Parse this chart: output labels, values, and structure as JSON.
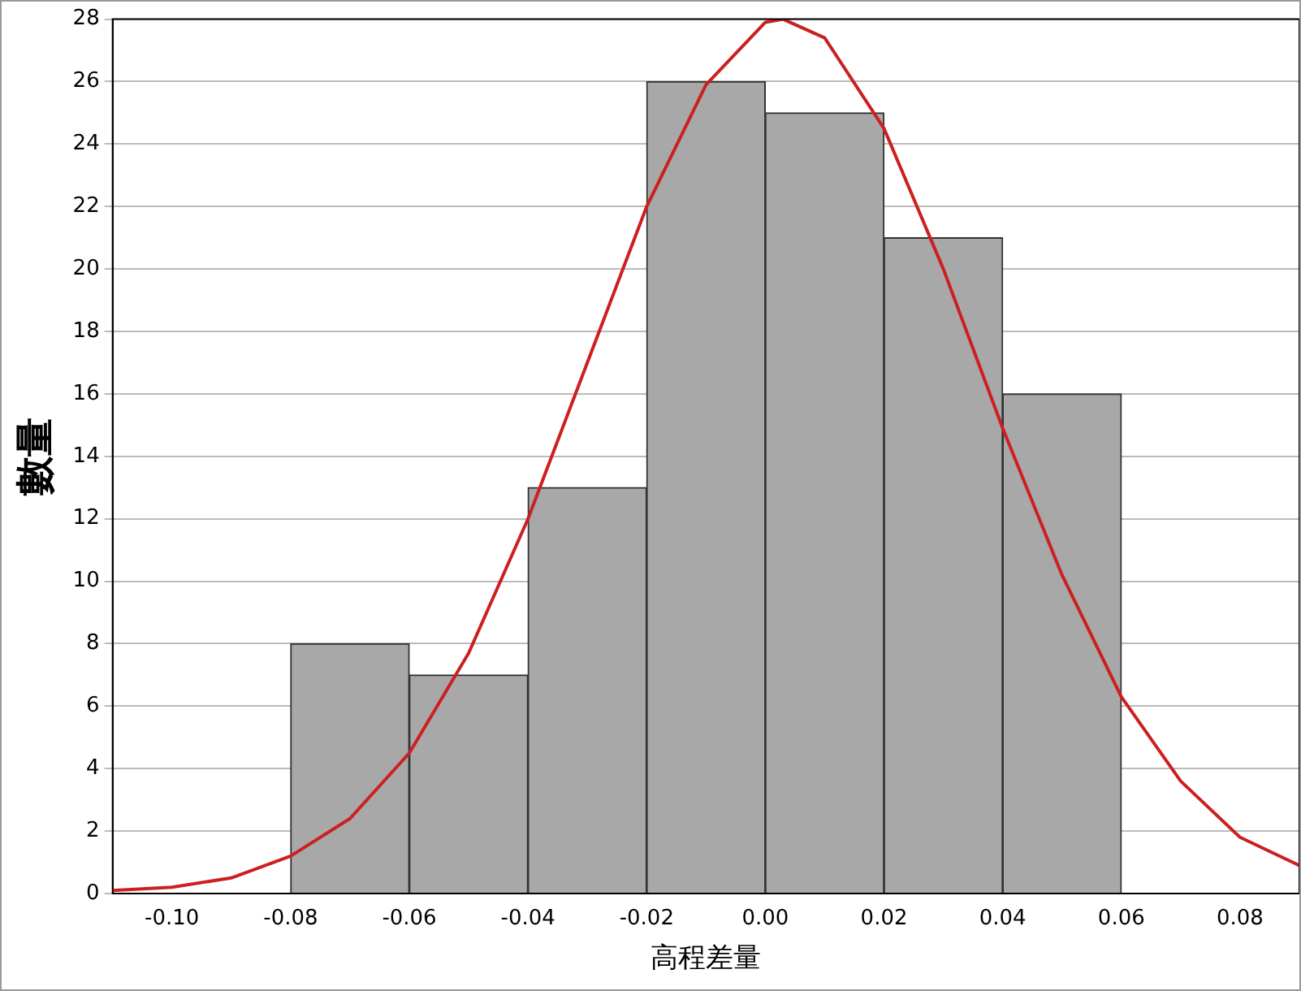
{
  "chart_data": {
    "type": "histogram",
    "xlabel": "高程差量",
    "ylabel": "數量",
    "bins": [
      -0.08,
      -0.06,
      -0.04,
      -0.02,
      0.0,
      0.02,
      0.04,
      0.06
    ],
    "values": [
      8,
      7,
      13,
      26,
      25,
      21,
      16
    ],
    "color": "#a8a8a8",
    "series": [
      {
        "type": "line",
        "color": "#cc2020",
        "x": [
          -0.11,
          -0.1,
          -0.09,
          -0.08,
          -0.07,
          -0.06,
          -0.05,
          -0.04,
          -0.03,
          -0.02,
          -0.01,
          0.0,
          0.003,
          0.01,
          0.02,
          0.03,
          0.04,
          0.05,
          0.06,
          0.07,
          0.08,
          0.09
        ],
        "values": [
          0.1,
          0.2,
          0.5,
          1.2,
          2.4,
          4.5,
          7.7,
          12.0,
          17.0,
          22.0,
          25.9,
          27.9,
          28.0,
          27.4,
          24.5,
          20.0,
          14.9,
          10.2,
          6.3,
          3.6,
          1.8,
          0.9
        ]
      }
    ],
    "xlim": [
      -0.11,
      0.09
    ],
    "xticks": [
      {
        "value": -0.1,
        "label": "-0.10"
      },
      {
        "value": -0.08,
        "label": "-0.08"
      },
      {
        "value": -0.06,
        "label": "-0.06"
      },
      {
        "value": -0.04,
        "label": "-0.04"
      },
      {
        "value": -0.02,
        "label": "-0.02"
      },
      {
        "value": 0,
        "label": "0.00"
      },
      {
        "value": 0.02,
        "label": "0.02"
      },
      {
        "value": 0.04,
        "label": "0.04"
      },
      {
        "value": 0.06,
        "label": "0.06"
      },
      {
        "value": 0.08,
        "label": "0.08"
      }
    ],
    "ylim": [
      0,
      28
    ],
    "yticks": [
      0,
      2,
      4,
      6,
      8,
      10,
      12,
      14,
      16,
      18,
      20,
      22,
      24,
      26,
      28
    ],
    "grid": "y",
    "legend": false,
    "marker": "none",
    "line_style": "solid"
  }
}
